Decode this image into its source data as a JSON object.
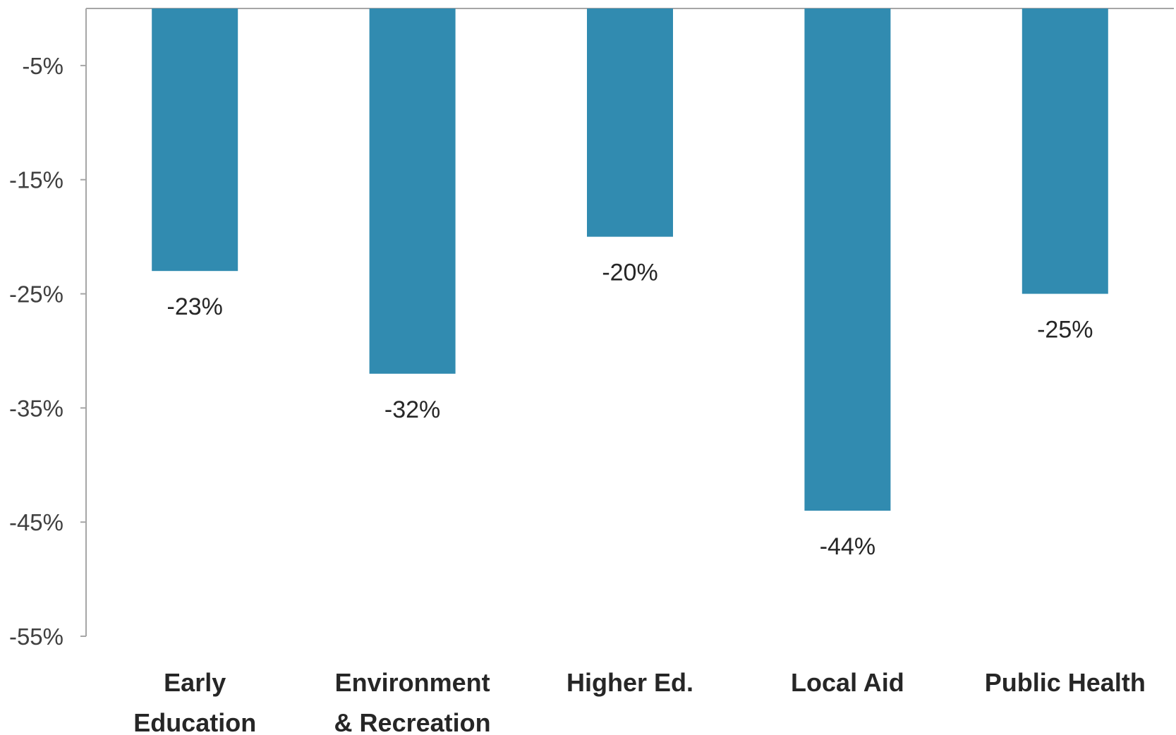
{
  "chart_data": {
    "type": "bar",
    "title": "",
    "xlabel": "",
    "ylabel": "",
    "categories": [
      [
        "Early",
        "Education"
      ],
      [
        "Environment",
        "& Recreation"
      ],
      [
        "Higher Ed."
      ],
      [
        "Local Aid"
      ],
      [
        "Public Health"
      ]
    ],
    "values": [
      -23,
      -32,
      -20,
      -44,
      -25
    ],
    "data_labels": [
      "-23%",
      "-32%",
      "-20%",
      "-44%",
      "-25%"
    ],
    "ylim": [
      -55,
      0
    ],
    "yticks": [
      -5,
      -15,
      -25,
      -35,
      -45,
      -55
    ],
    "ytick_labels": [
      "-5%",
      "-15%",
      "-25%",
      "-35%",
      "-45%",
      "-55%"
    ],
    "bar_color": "#318BB0",
    "axis_color": "#A6A6A6",
    "grid": false,
    "legend": "none"
  }
}
